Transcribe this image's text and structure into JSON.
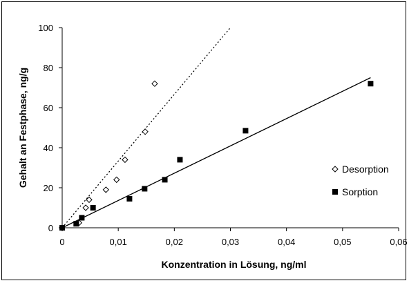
{
  "chart_data": {
    "type": "scatter",
    "xlabel": "Konzentration in Lösung, ng/ml",
    "ylabel": "Gehalt an Festphase, ng/g",
    "xlim": [
      0,
      0.06
    ],
    "ylim": [
      0,
      100
    ],
    "x_ticks": [
      "0",
      "0,01",
      "0,02",
      "0,03",
      "0,04",
      "0,05",
      "0,06"
    ],
    "y_ticks": [
      "0",
      "20",
      "40",
      "60",
      "80",
      "100"
    ],
    "grid": false,
    "legend_position": "right",
    "series": [
      {
        "name": "Desorption",
        "marker": "open-diamond",
        "color": "#000000",
        "points": [
          {
            "x": 0.0,
            "y": 0.0
          },
          {
            "x": 0.003,
            "y": 2.5
          },
          {
            "x": 0.0042,
            "y": 10
          },
          {
            "x": 0.0048,
            "y": 14
          },
          {
            "x": 0.0078,
            "y": 19
          },
          {
            "x": 0.0097,
            "y": 24
          },
          {
            "x": 0.0112,
            "y": 34
          },
          {
            "x": 0.0148,
            "y": 48
          },
          {
            "x": 0.0165,
            "y": 72
          }
        ],
        "trendline": {
          "style": "dotted",
          "x": [
            0,
            0.03
          ],
          "y": [
            0,
            100
          ]
        }
      },
      {
        "name": "Sorption",
        "marker": "filled-square",
        "color": "#000000",
        "points": [
          {
            "x": 0.0,
            "y": 0.0
          },
          {
            "x": 0.0025,
            "y": 2
          },
          {
            "x": 0.0035,
            "y": 5
          },
          {
            "x": 0.0055,
            "y": 10
          },
          {
            "x": 0.012,
            "y": 14.5
          },
          {
            "x": 0.0147,
            "y": 19.5
          },
          {
            "x": 0.0183,
            "y": 24
          },
          {
            "x": 0.021,
            "y": 34
          },
          {
            "x": 0.0327,
            "y": 48.5
          },
          {
            "x": 0.055,
            "y": 72
          }
        ],
        "trendline": {
          "style": "solid",
          "x": [
            0,
            0.055
          ],
          "y": [
            0,
            75
          ]
        }
      }
    ]
  }
}
